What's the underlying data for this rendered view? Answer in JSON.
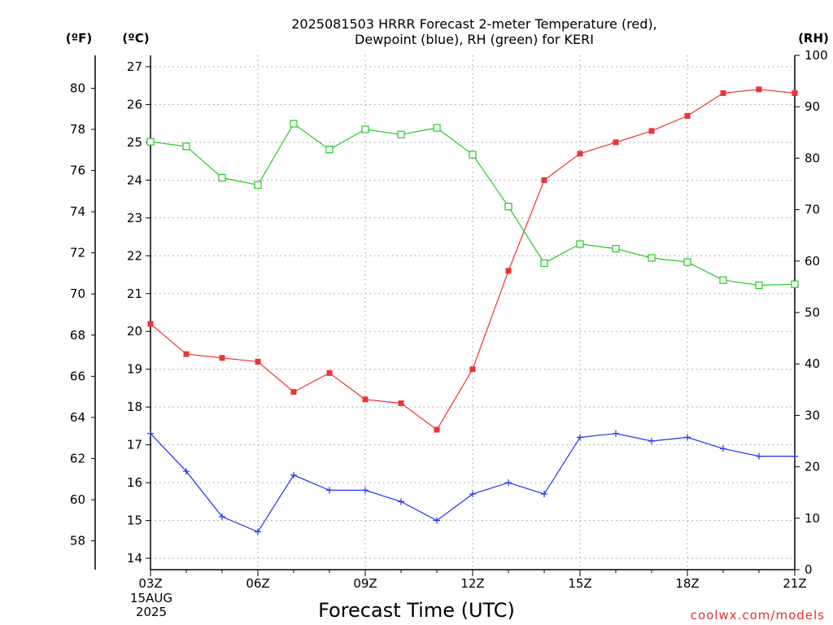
{
  "chart_data": {
    "type": "line",
    "title": [
      "2025081503 HRRR Forecast 2-meter Temperature (red),",
      "Dewpoint (blue), RH (green) for KERI"
    ],
    "xlabel": "Forecast Time (UTC)",
    "credit": "coolwx.com/models",
    "x_tick_labels": [
      "03Z",
      "06Z",
      "09Z",
      "12Z",
      "15Z",
      "18Z",
      "21Z"
    ],
    "x_date_label": [
      "15AUG",
      "2025"
    ],
    "x": [
      "03Z",
      "04Z",
      "05Z",
      "06Z",
      "07Z",
      "08Z",
      "09Z",
      "10Z",
      "11Z",
      "12Z",
      "13Z",
      "14Z",
      "15Z",
      "16Z",
      "17Z",
      "18Z",
      "19Z",
      "20Z",
      "21Z"
    ],
    "axes": {
      "fahrenheit": {
        "label": "(ºF)",
        "range": [
          56.6,
          81.6
        ],
        "ticks": [
          58,
          60,
          62,
          64,
          66,
          68,
          70,
          72,
          74,
          76,
          78,
          80
        ]
      },
      "celsius": {
        "label": "(ºC)",
        "range": [
          13.7,
          27.3
        ],
        "ticks": [
          14,
          15,
          16,
          17,
          18,
          19,
          20,
          21,
          22,
          23,
          24,
          25,
          26,
          27
        ]
      },
      "rh": {
        "label": "(RH)",
        "range": [
          0,
          100
        ],
        "ticks": [
          0,
          10,
          20,
          30,
          40,
          50,
          60,
          70,
          80,
          90,
          100
        ]
      }
    },
    "grid": true,
    "series": [
      {
        "name": "Temperature",
        "axis": "celsius",
        "color": "#ee3333",
        "marker": "filled-square",
        "values": [
          20.2,
          19.4,
          19.3,
          19.2,
          18.4,
          18.9,
          18.2,
          18.1,
          17.4,
          19.0,
          21.6,
          24.0,
          24.7,
          25.0,
          25.3,
          25.7,
          26.3,
          26.4,
          26.3
        ]
      },
      {
        "name": "Dewpoint",
        "axis": "celsius",
        "color": "#2233ee",
        "marker": "plus",
        "values": [
          17.3,
          16.3,
          15.1,
          14.7,
          16.2,
          15.8,
          15.8,
          15.5,
          15.0,
          15.7,
          16.0,
          15.7,
          17.2,
          17.3,
          17.1,
          17.2,
          16.9,
          16.7,
          16.7
        ]
      },
      {
        "name": "RH",
        "axis": "rh",
        "color": "#22cc22",
        "marker": "open-square",
        "values": [
          83.2,
          82.3,
          76.2,
          74.8,
          86.7,
          81.7,
          85.6,
          84.6,
          85.9,
          80.7,
          70.6,
          59.6,
          63.3,
          62.4,
          60.6,
          59.8,
          56.3,
          55.3,
          55.5
        ]
      }
    ]
  }
}
